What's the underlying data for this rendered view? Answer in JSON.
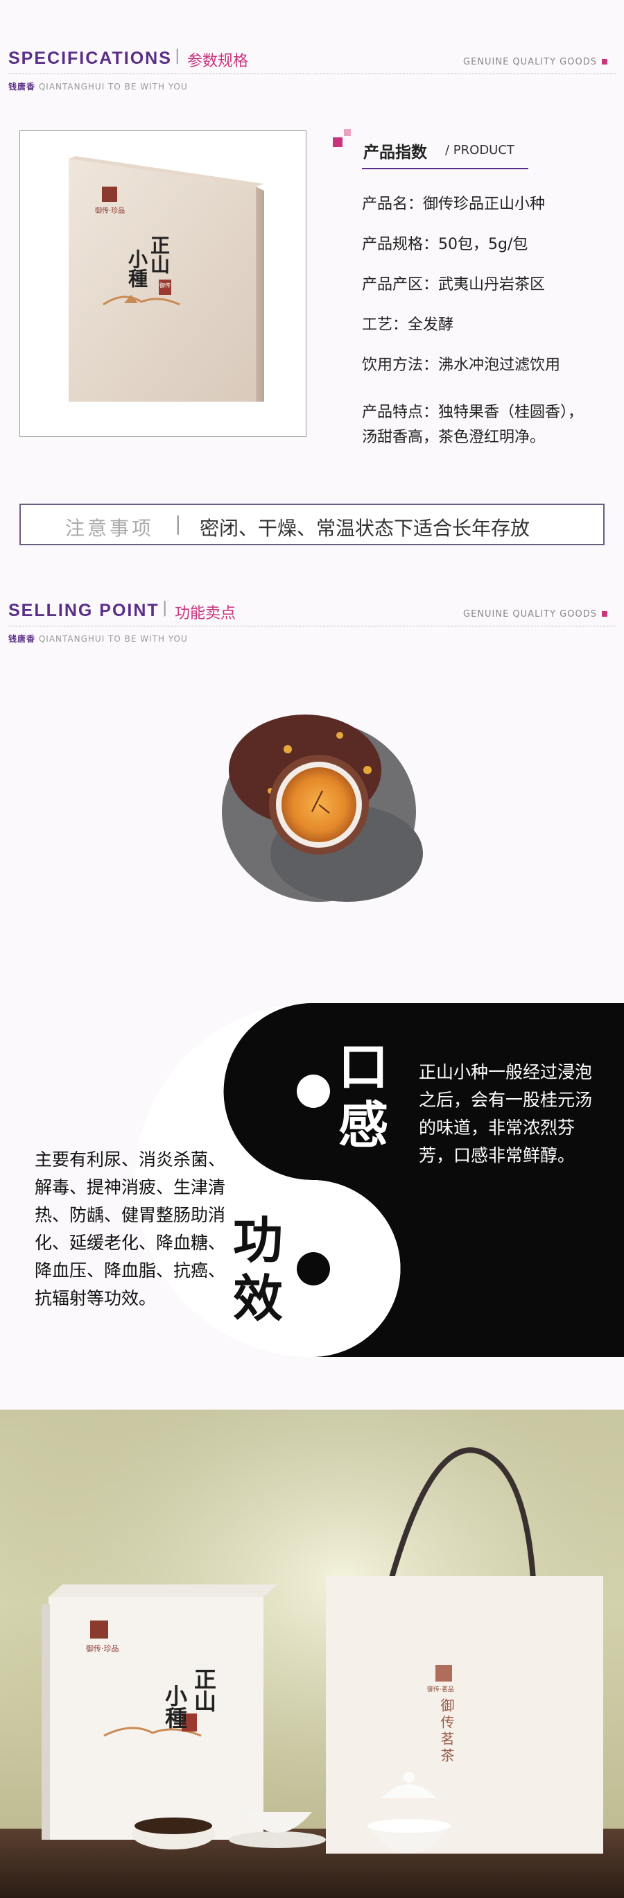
{
  "spec_header": {
    "title": "SPECIFICATIONS",
    "bar": "|",
    "subtitle": "参数规格",
    "right": "GENUINE QUALITY GOODS",
    "brand_cn": "钱唐香",
    "brand_en": "QIANTANGHUI TO BE WITH YOU"
  },
  "box": {
    "brand_mark": "御传·珍品",
    "name_line1": "正山",
    "name_line2": "小種",
    "seal": "御传"
  },
  "product": {
    "heading": "产品指数",
    "heading_en": "/ PRODUCT",
    "rows": [
      "产品名：御传珍品正山小种",
      "产品规格：50包，5g/包",
      "产品产区：武夷山丹岩茶区",
      "工艺：全发酵",
      "饮用方法：沸水冲泡过滤饮用"
    ],
    "feature_line1": "产品特点：独特果香（桂圆香），",
    "feature_line2": "汤甜香高，茶色澄红明净。"
  },
  "notice": {
    "label": "注意事项",
    "bar": "|",
    "text": "密闭、干燥、常温状态下适合长年存放"
  },
  "selling_header": {
    "title": "SELLING POINT",
    "bar": "|",
    "subtitle": "功能卖点",
    "right": "GENUINE QUALITY GOODS",
    "brand_cn": "钱唐香",
    "brand_en": "QIANTANGHUI TO BE WITH YOU"
  },
  "yinyang": {
    "taste_char1": "口",
    "taste_char2": "感",
    "effect_char1": "功",
    "effect_char2": "效",
    "taste_text": "正山小种一般经过浸泡之后，会有一股桂元汤的味道，非常浓烈芬芳，口感非常鲜醇。",
    "effect_text": "主要有利尿、消炎杀菌、解毒、提神消疲、生津清热、防龋、健胃整肠助消化、延缓老化、降血糖、降血压、降血脂、抗癌、抗辐射等功效。"
  },
  "photo": {
    "box_brand": "御传·珍品",
    "box_name1": "正山",
    "box_name2": "小種",
    "bag_brand": "御传·茗品",
    "bag_text": "御传茗茶"
  },
  "colors": {
    "purple": "#5a2d86",
    "magenta": "#c8357f"
  }
}
